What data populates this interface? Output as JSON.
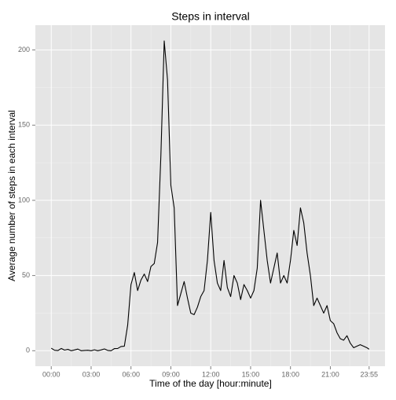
{
  "chart_data": {
    "type": "line",
    "title": "Steps in interval",
    "x_label": "Time of the day [hour:minute]",
    "y_label": "Average number of steps in each interval",
    "x": [
      0,
      15,
      30,
      45,
      60,
      75,
      90,
      105,
      120,
      135,
      150,
      165,
      180,
      195,
      210,
      225,
      240,
      255,
      270,
      285,
      300,
      315,
      330,
      345,
      360,
      375,
      390,
      405,
      420,
      435,
      450,
      465,
      480,
      495,
      510,
      525,
      540,
      555,
      570,
      585,
      600,
      615,
      630,
      645,
      660,
      675,
      690,
      705,
      720,
      735,
      750,
      765,
      780,
      795,
      810,
      825,
      840,
      855,
      870,
      885,
      900,
      915,
      930,
      945,
      960,
      975,
      990,
      1005,
      1020,
      1035,
      1050,
      1065,
      1080,
      1095,
      1110,
      1125,
      1140,
      1155,
      1170,
      1185,
      1200,
      1215,
      1230,
      1245,
      1260,
      1275,
      1290,
      1305,
      1320,
      1335,
      1350,
      1365,
      1380,
      1395,
      1410,
      1425,
      1435
    ],
    "series": [
      {
        "color": "#000000",
        "values": [
          1.7,
          0.3,
          0.1,
          1.5,
          0.4,
          0.9,
          0,
          0.5,
          1.1,
          0,
          0.2,
          0.3,
          0,
          0.6,
          0,
          0.5,
          1.2,
          0.2,
          0,
          1.4,
          1.5,
          2.8,
          3,
          17,
          44,
          52,
          40,
          47,
          51,
          46,
          56,
          58,
          72,
          130,
          206,
          180,
          110,
          95,
          30,
          38,
          46,
          35,
          25,
          24,
          29,
          36,
          40,
          60,
          92,
          60,
          45,
          40,
          60,
          42,
          36,
          50,
          45,
          34,
          44,
          40,
          35,
          40,
          55,
          100,
          80,
          60,
          45,
          55,
          65,
          45,
          50,
          45,
          60,
          80,
          70,
          95,
          85,
          65,
          50,
          30,
          35,
          30,
          25,
          30,
          20,
          18,
          12,
          8,
          7,
          10,
          5,
          2,
          3,
          4,
          3,
          2,
          1
        ]
      }
    ],
    "xlim": [
      -71.75,
      1506.75
    ],
    "ylim": [
      -10.3,
      216.5
    ],
    "xticks": [
      {
        "value": 0,
        "label": "00:00"
      },
      {
        "value": 180,
        "label": "03:00"
      },
      {
        "value": 360,
        "label": "06:00"
      },
      {
        "value": 540,
        "label": "09:00"
      },
      {
        "value": 720,
        "label": "12:00"
      },
      {
        "value": 900,
        "label": "15:00"
      },
      {
        "value": 1080,
        "label": "18:00"
      },
      {
        "value": 1260,
        "label": "21:00"
      },
      {
        "value": 1435,
        "label": "23:55"
      }
    ],
    "yticks": [
      0,
      50,
      100,
      150,
      200
    ],
    "xminorticks": [
      90,
      270,
      450,
      630,
      810,
      990,
      1170,
      1347.5
    ],
    "yminorticks": [
      25,
      75,
      125,
      175
    ],
    "grid": true
  }
}
